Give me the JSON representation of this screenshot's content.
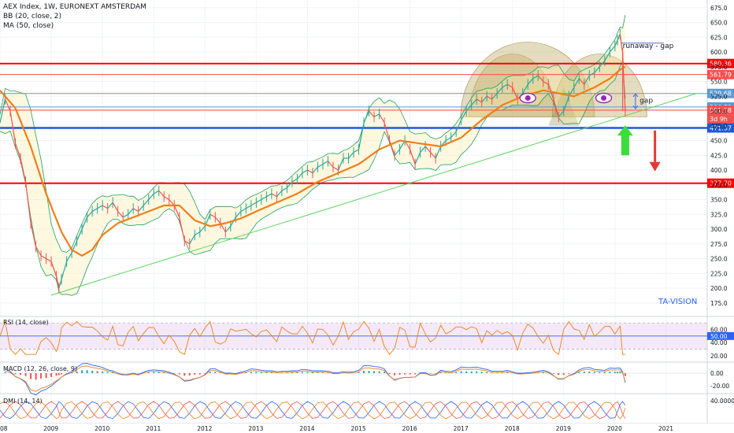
{
  "header": {
    "title": "AEX Index, 1W, EURONEXT AMSTERDAM",
    "indicators": [
      "BB (20, close, 2)",
      "MA (50, close)"
    ]
  },
  "watermark": "TA-VISION",
  "chart_data": {
    "type": "line",
    "title": "AEX Index, 1W, EURONEXT AMSTERDAM",
    "x_axis_years": [
      "08",
      "2009",
      "2010",
      "2011",
      "2012",
      "2013",
      "2014",
      "2015",
      "2016",
      "2017",
      "2018",
      "2019",
      "2020",
      "2021"
    ],
    "y_ticks": [
      175,
      200,
      225,
      250,
      275,
      300,
      325,
      350,
      375,
      400,
      425,
      450,
      475,
      500,
      525,
      550,
      575,
      600,
      625,
      650,
      675
    ],
    "ylim": [
      160,
      680
    ],
    "price_series": [
      [
        2008.0,
        480
      ],
      [
        2008.1,
        520
      ],
      [
        2008.2,
        500
      ],
      [
        2008.3,
        445
      ],
      [
        2008.4,
        420
      ],
      [
        2008.5,
        380
      ],
      [
        2008.6,
        310
      ],
      [
        2008.7,
        270
      ],
      [
        2008.8,
        255
      ],
      [
        2008.9,
        250
      ],
      [
        2009.0,
        245
      ],
      [
        2009.1,
        220
      ],
      [
        2009.15,
        200
      ],
      [
        2009.2,
        215
      ],
      [
        2009.3,
        245
      ],
      [
        2009.4,
        260
      ],
      [
        2009.5,
        280
      ],
      [
        2009.6,
        300
      ],
      [
        2009.7,
        320
      ],
      [
        2009.8,
        330
      ],
      [
        2009.9,
        335
      ],
      [
        2010.0,
        340
      ],
      [
        2010.1,
        335
      ],
      [
        2010.2,
        345
      ],
      [
        2010.3,
        330
      ],
      [
        2010.4,
        320
      ],
      [
        2010.5,
        325
      ],
      [
        2010.6,
        335
      ],
      [
        2010.7,
        330
      ],
      [
        2010.8,
        340
      ],
      [
        2010.9,
        350
      ],
      [
        2011.0,
        360
      ],
      [
        2011.1,
        365
      ],
      [
        2011.2,
        355
      ],
      [
        2011.3,
        350
      ],
      [
        2011.4,
        340
      ],
      [
        2011.5,
        320
      ],
      [
        2011.6,
        280
      ],
      [
        2011.7,
        275
      ],
      [
        2011.8,
        290
      ],
      [
        2011.9,
        295
      ],
      [
        2012.0,
        305
      ],
      [
        2012.1,
        325
      ],
      [
        2012.2,
        320
      ],
      [
        2012.3,
        310
      ],
      [
        2012.4,
        295
      ],
      [
        2012.5,
        305
      ],
      [
        2012.6,
        320
      ],
      [
        2012.7,
        330
      ],
      [
        2012.8,
        335
      ],
      [
        2012.9,
        340
      ],
      [
        2013.0,
        345
      ],
      [
        2013.1,
        350
      ],
      [
        2013.2,
        355
      ],
      [
        2013.3,
        360
      ],
      [
        2013.4,
        355
      ],
      [
        2013.5,
        365
      ],
      [
        2013.6,
        370
      ],
      [
        2013.7,
        380
      ],
      [
        2013.8,
        385
      ],
      [
        2013.9,
        395
      ],
      [
        2014.0,
        400
      ],
      [
        2014.1,
        395
      ],
      [
        2014.2,
        405
      ],
      [
        2014.3,
        410
      ],
      [
        2014.4,
        415
      ],
      [
        2014.5,
        405
      ],
      [
        2014.6,
        400
      ],
      [
        2014.7,
        420
      ],
      [
        2014.8,
        420
      ],
      [
        2014.9,
        430
      ],
      [
        2015.0,
        435
      ],
      [
        2015.1,
        480
      ],
      [
        2015.2,
        500
      ],
      [
        2015.3,
        490
      ],
      [
        2015.4,
        495
      ],
      [
        2015.5,
        480
      ],
      [
        2015.6,
        450
      ],
      [
        2015.7,
        425
      ],
      [
        2015.8,
        435
      ],
      [
        2015.9,
        450
      ],
      [
        2016.0,
        435
      ],
      [
        2016.1,
        410
      ],
      [
        2016.2,
        430
      ],
      [
        2016.3,
        440
      ],
      [
        2016.4,
        430
      ],
      [
        2016.5,
        420
      ],
      [
        2016.6,
        440
      ],
      [
        2016.7,
        450
      ],
      [
        2016.8,
        455
      ],
      [
        2016.9,
        465
      ],
      [
        2017.0,
        485
      ],
      [
        2017.1,
        500
      ],
      [
        2017.2,
        510
      ],
      [
        2017.3,
        520
      ],
      [
        2017.4,
        515
      ],
      [
        2017.5,
        525
      ],
      [
        2017.6,
        520
      ],
      [
        2017.7,
        530
      ],
      [
        2017.8,
        540
      ],
      [
        2017.9,
        545
      ],
      [
        2018.0,
        540
      ],
      [
        2018.1,
        520
      ],
      [
        2018.2,
        530
      ],
      [
        2018.3,
        545
      ],
      [
        2018.4,
        555
      ],
      [
        2018.5,
        560
      ],
      [
        2018.6,
        550
      ],
      [
        2018.7,
        545
      ],
      [
        2018.8,
        520
      ],
      [
        2018.9,
        490
      ],
      [
        2019.0,
        500
      ],
      [
        2019.1,
        525
      ],
      [
        2019.2,
        540
      ],
      [
        2019.3,
        555
      ],
      [
        2019.4,
        545
      ],
      [
        2019.5,
        560
      ],
      [
        2019.6,
        565
      ],
      [
        2019.7,
        575
      ],
      [
        2019.8,
        585
      ],
      [
        2019.9,
        600
      ],
      [
        2020.0,
        610
      ],
      [
        2020.05,
        620
      ],
      [
        2020.1,
        630
      ],
      [
        2020.15,
        598
      ],
      [
        2020.2,
        500
      ]
    ],
    "ma50_series": [
      [
        2008.0,
        535
      ],
      [
        2008.3,
        505
      ],
      [
        2008.6,
        440
      ],
      [
        2008.9,
        360
      ],
      [
        2009.2,
        295
      ],
      [
        2009.4,
        265
      ],
      [
        2009.6,
        255
      ],
      [
        2009.8,
        265
      ],
      [
        2010.0,
        290
      ],
      [
        2010.3,
        310
      ],
      [
        2010.6,
        320
      ],
      [
        2010.9,
        330
      ],
      [
        2011.2,
        340
      ],
      [
        2011.5,
        340
      ],
      [
        2011.8,
        315
      ],
      [
        2012.1,
        305
      ],
      [
        2012.4,
        310
      ],
      [
        2012.7,
        318
      ],
      [
        2013.0,
        330
      ],
      [
        2013.4,
        345
      ],
      [
        2013.8,
        360
      ],
      [
        2014.2,
        380
      ],
      [
        2014.6,
        395
      ],
      [
        2015.0,
        410
      ],
      [
        2015.4,
        435
      ],
      [
        2015.8,
        450
      ],
      [
        2016.2,
        445
      ],
      [
        2016.6,
        440
      ],
      [
        2017.0,
        455
      ],
      [
        2017.4,
        485
      ],
      [
        2017.8,
        510
      ],
      [
        2018.2,
        525
      ],
      [
        2018.6,
        535
      ],
      [
        2018.9,
        530
      ],
      [
        2019.2,
        525
      ],
      [
        2019.6,
        540
      ],
      [
        2019.9,
        555
      ],
      [
        2020.1,
        570
      ],
      [
        2020.2,
        575
      ]
    ],
    "horizontal_levels": [
      {
        "value": 580.36,
        "label": "580.36",
        "color": "#ff0000"
      },
      {
        "value": 561.79,
        "label": "561.79",
        "color": "#ff4d4d"
      },
      {
        "value": 529.68,
        "label": "529.68",
        "color": "#5b9bd5"
      },
      {
        "value": 506.79,
        "label": "506.79",
        "color": "#5b9bd5"
      },
      {
        "value": 501.58,
        "label": "501.58",
        "color": "#ff4d4d"
      },
      {
        "value": 471.37,
        "label": "471.37",
        "color": "#1e5ad6"
      },
      {
        "value": 377.7,
        "label": "377.70",
        "color": "#ff0000"
      }
    ],
    "price_badge": {
      "label": "3d 9h",
      "color": "#ef5350"
    },
    "trendline": {
      "from": [
        2009.0,
        188
      ],
      "to": [
        2021.6,
        530
      ],
      "color": "#5cd65c"
    },
    "annotations": [
      {
        "text": "runaway - gap"
      },
      {
        "text": "gap"
      }
    ]
  },
  "rsi_pane": {
    "title": "RSI (14, close)",
    "ticks": [
      "60.00",
      "40.00",
      "20.00"
    ],
    "current": "50.00"
  },
  "macd_pane": {
    "title": "MACD (12, 26, close, 9)",
    "ticks": [
      "0.00",
      "-20.00"
    ]
  },
  "dmi_pane": {
    "title": "DMI (14, 14)",
    "ticks": [
      "40.0000"
    ]
  },
  "colors": {
    "up": "#26a69a",
    "down": "#ef5350",
    "ma": "#ef7f1a",
    "bb": "#1b9e5e",
    "bb_fill": "rgba(255,235,170,0.35)",
    "dome": "rgba(196,178,110,0.45)"
  }
}
